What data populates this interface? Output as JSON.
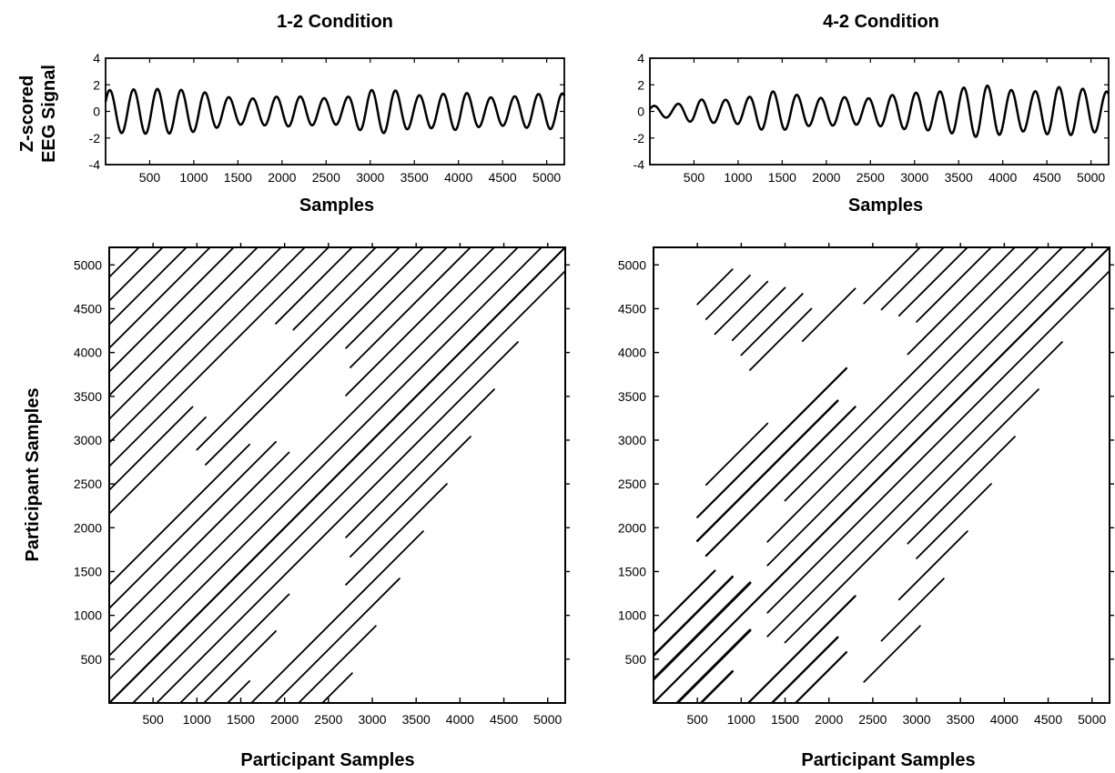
{
  "chart_data": [
    {
      "type": "line",
      "title": "1-2 Condition",
      "xlabel": "Samples",
      "ylabel_lines": [
        "Z-scored",
        "EEG Signal"
      ],
      "xlim": [
        0,
        5200
      ],
      "ylim": [
        -4,
        4
      ],
      "x_ticks": [
        500,
        1000,
        1500,
        2000,
        2500,
        3000,
        3500,
        4000,
        4500,
        5000
      ],
      "y_ticks": [
        -4,
        -2,
        0,
        2,
        4
      ],
      "grid": false,
      "series": [
        {
          "sample_step": 10,
          "cycle_length": 270,
          "cycle_peaks": [
            1.6,
            1.65,
            1.7,
            1.65,
            1.5,
            1.1,
            0.95,
            1.1,
            1.15,
            1.0,
            1.0,
            1.6,
            1.65,
            1.2,
            1.3,
            1.45,
            1.05,
            1.1,
            1.3,
            1.35
          ]
        }
      ]
    },
    {
      "type": "line",
      "title": "4-2 Condition",
      "xlabel": "Samples",
      "xlim": [
        0,
        5200
      ],
      "ylim": [
        -4,
        4
      ],
      "x_ticks": [
        500,
        1000,
        1500,
        2000,
        2500,
        3000,
        3500,
        4000,
        4500,
        5000
      ],
      "y_ticks": [
        -4,
        -2,
        0,
        2,
        4
      ],
      "grid": false,
      "series": [
        {
          "sample_step": 10,
          "cycle_length": 270,
          "cycle_peaks": [
            0.4,
            0.5,
            0.9,
            0.85,
            1.0,
            1.55,
            1.3,
            1.0,
            1.1,
            0.95,
            1.2,
            1.4,
            1.45,
            1.75,
            2.0,
            1.65,
            1.45,
            1.85,
            1.75,
            1.5
          ]
        }
      ]
    },
    {
      "type": "heatmap",
      "subtype": "recurrence-plot",
      "xlabel": "Participant Samples",
      "ylabel": "Participant Samples",
      "xlim": [
        0,
        5200
      ],
      "ylim": [
        0,
        5200
      ],
      "x_ticks": [
        500,
        1000,
        1500,
        2000,
        2500,
        3000,
        3500,
        4000,
        4500,
        5000
      ],
      "y_ticks": [
        500,
        1000,
        1500,
        2000,
        2500,
        3000,
        3500,
        4000,
        4500,
        5000
      ],
      "diagonal_lag_spacing": 270,
      "recurrent_lines": [
        {
          "lag": 0,
          "from": 0,
          "to": 5200,
          "width": 2.2
        },
        {
          "lag": 270,
          "from": 0,
          "to": 5200,
          "width": 1.8
        },
        {
          "lag": -270,
          "from": 0,
          "to": 5200,
          "width": 1.8
        },
        {
          "lag": 540,
          "from": 0,
          "to": 4660,
          "width": 1.8
        },
        {
          "lag": -540,
          "from": 0,
          "to": 4660,
          "width": 1.8
        },
        {
          "lag": 810,
          "from": 0,
          "to": 2050,
          "width": 1.8
        },
        {
          "lag": 810,
          "from": 2700,
          "to": 4390,
          "width": 1.8
        },
        {
          "lag": -810,
          "from": 0,
          "to": 2050,
          "width": 1.8
        },
        {
          "lag": -810,
          "from": 2700,
          "to": 4390,
          "width": 1.8
        },
        {
          "lag": 1080,
          "from": 0,
          "to": 1900,
          "width": 1.8
        },
        {
          "lag": 1080,
          "from": 2750,
          "to": 4120,
          "width": 1.8
        },
        {
          "lag": -1080,
          "from": 0,
          "to": 1900,
          "width": 1.8
        },
        {
          "lag": -1080,
          "from": 2750,
          "to": 4120,
          "width": 1.8
        },
        {
          "lag": 1350,
          "from": 0,
          "to": 1600,
          "width": 1.8
        },
        {
          "lag": 1350,
          "from": 2700,
          "to": 3850,
          "width": 1.8
        },
        {
          "lag": -1350,
          "from": 0,
          "to": 1600,
          "width": 1.8
        },
        {
          "lag": -1350,
          "from": 2700,
          "to": 3850,
          "width": 1.8
        },
        {
          "lag": 1620,
          "from": 1100,
          "to": 3580,
          "width": 1.8
        },
        {
          "lag": -1620,
          "from": 1100,
          "to": 3580,
          "width": 1.8
        },
        {
          "lag": 1890,
          "from": 1000,
          "to": 3310,
          "width": 1.8
        },
        {
          "lag": -1890,
          "from": 1000,
          "to": 3310,
          "width": 1.8
        },
        {
          "lag": 2160,
          "from": 0,
          "to": 1100,
          "width": 1.8
        },
        {
          "lag": 2160,
          "from": 2100,
          "to": 3040,
          "width": 1.8
        },
        {
          "lag": -2160,
          "from": 0,
          "to": 1100,
          "width": 1.8
        },
        {
          "lag": -2160,
          "from": 2100,
          "to": 3040,
          "width": 1.8
        },
        {
          "lag": 2430,
          "from": 0,
          "to": 950,
          "width": 1.8
        },
        {
          "lag": 2430,
          "from": 1900,
          "to": 2770,
          "width": 1.8
        },
        {
          "lag": -2430,
          "from": 0,
          "to": 950,
          "width": 1.8
        },
        {
          "lag": -2430,
          "from": 1900,
          "to": 2770,
          "width": 1.8
        },
        {
          "lag": 2700,
          "from": 0,
          "to": 2500,
          "width": 1.8
        },
        {
          "lag": -2700,
          "from": 0,
          "to": 2500,
          "width": 1.8
        },
        {
          "lag": 2970,
          "from": 0,
          "to": 2230,
          "width": 1.8
        },
        {
          "lag": -2970,
          "from": 0,
          "to": 2230,
          "width": 1.8
        },
        {
          "lag": 3240,
          "from": 0,
          "to": 1960,
          "width": 1.8
        },
        {
          "lag": -3240,
          "from": 0,
          "to": 1960,
          "width": 1.8
        },
        {
          "lag": 3510,
          "from": 0,
          "to": 1690,
          "width": 1.8
        },
        {
          "lag": -3510,
          "from": 0,
          "to": 1690,
          "width": 1.8
        },
        {
          "lag": 3780,
          "from": 0,
          "to": 1420,
          "width": 1.8
        },
        {
          "lag": -3780,
          "from": 0,
          "to": 1420,
          "width": 1.8
        },
        {
          "lag": 4050,
          "from": 0,
          "to": 1150,
          "width": 1.8
        },
        {
          "lag": -4050,
          "from": 0,
          "to": 1150,
          "width": 1.8
        },
        {
          "lag": 4320,
          "from": 0,
          "to": 880,
          "width": 1.8
        },
        {
          "lag": -4320,
          "from": 0,
          "to": 880,
          "width": 1.8
        },
        {
          "lag": 4590,
          "from": 0,
          "to": 610,
          "width": 1.8
        },
        {
          "lag": -4590,
          "from": 0,
          "to": 610,
          "width": 1.8
        },
        {
          "lag": 4860,
          "from": 0,
          "to": 340,
          "width": 1.8
        },
        {
          "lag": -4860,
          "from": 0,
          "to": 340,
          "width": 1.8
        }
      ]
    },
    {
      "type": "heatmap",
      "subtype": "recurrence-plot",
      "xlabel": "Participant Samples",
      "xlim": [
        0,
        5200
      ],
      "ylim": [
        0,
        5200
      ],
      "x_ticks": [
        500,
        1000,
        1500,
        2000,
        2500,
        3000,
        3500,
        4000,
        4500,
        5000
      ],
      "y_ticks": [
        500,
        1000,
        1500,
        2000,
        2500,
        3000,
        3500,
        4000,
        4500,
        5000
      ],
      "diagonal_lag_spacing": 270,
      "recurrent_lines": [
        {
          "lag": 0,
          "from": 0,
          "to": 5200,
          "width": 2.2
        },
        {
          "lag": 270,
          "from": 0,
          "to": 1100,
          "width": 3.0
        },
        {
          "lag": 270,
          "from": 1300,
          "to": 5200,
          "width": 1.8
        },
        {
          "lag": -270,
          "from": 0,
          "to": 1100,
          "width": 3.0
        },
        {
          "lag": -270,
          "from": 1300,
          "to": 5200,
          "width": 1.8
        },
        {
          "lag": 540,
          "from": 0,
          "to": 900,
          "width": 2.6
        },
        {
          "lag": 540,
          "from": 1300,
          "to": 4660,
          "width": 1.8
        },
        {
          "lag": -540,
          "from": 0,
          "to": 900,
          "width": 2.6
        },
        {
          "lag": -540,
          "from": 1300,
          "to": 4660,
          "width": 1.8
        },
        {
          "lag": 810,
          "from": 0,
          "to": 700,
          "width": 2.2
        },
        {
          "lag": 810,
          "from": 1500,
          "to": 4390,
          "width": 1.8
        },
        {
          "lag": -810,
          "from": 0,
          "to": 700,
          "width": 2.2
        },
        {
          "lag": -810,
          "from": 1500,
          "to": 4390,
          "width": 1.8
        },
        {
          "lag": 1080,
          "from": 600,
          "to": 2300,
          "width": 2.2
        },
        {
          "lag": 1080,
          "from": 2900,
          "to": 4120,
          "width": 1.8
        },
        {
          "lag": -1080,
          "from": 600,
          "to": 2300,
          "width": 2.2
        },
        {
          "lag": -1080,
          "from": 2900,
          "to": 4120,
          "width": 1.8
        },
        {
          "lag": 1350,
          "from": 500,
          "to": 2100,
          "width": 2.4
        },
        {
          "lag": 1350,
          "from": 3000,
          "to": 3850,
          "width": 1.8
        },
        {
          "lag": -1350,
          "from": 500,
          "to": 2100,
          "width": 2.4
        },
        {
          "lag": -1350,
          "from": 3000,
          "to": 3850,
          "width": 1.8
        },
        {
          "lag": 1620,
          "from": 500,
          "to": 2200,
          "width": 2.2
        },
        {
          "lag": 1620,
          "from": 2800,
          "to": 3580,
          "width": 1.8
        },
        {
          "lag": -1620,
          "from": 500,
          "to": 2200,
          "width": 2.2
        },
        {
          "lag": -1620,
          "from": 2800,
          "to": 3580,
          "width": 1.8
        },
        {
          "lag": 1890,
          "from": 600,
          "to": 1300,
          "width": 1.8
        },
        {
          "lag": 1890,
          "from": 2600,
          "to": 3310,
          "width": 1.8
        },
        {
          "lag": -1890,
          "from": 600,
          "to": 1300,
          "width": 1.8
        },
        {
          "lag": -1890,
          "from": 2600,
          "to": 3310,
          "width": 1.8
        },
        {
          "lag": 2160,
          "from": 2400,
          "to": 3040,
          "width": 1.8
        },
        {
          "lag": -2160,
          "from": 2400,
          "to": 3040,
          "width": 1.8
        },
        {
          "lag": 2430,
          "from": 1700,
          "to": 2300,
          "width": 1.8
        },
        {
          "lag": -2430,
          "from": 1700,
          "to": 2300,
          "width": 1.8
        },
        {
          "lag": 2700,
          "from": 1100,
          "to": 1800,
          "width": 1.8
        },
        {
          "lag": -2700,
          "from": 1100,
          "to": 1800,
          "width": 1.8
        },
        {
          "lag": 2970,
          "from": 1000,
          "to": 1700,
          "width": 1.8
        },
        {
          "lag": -2970,
          "from": 1000,
          "to": 1700,
          "width": 1.8
        },
        {
          "lag": 3240,
          "from": 900,
          "to": 1500,
          "width": 1.8
        },
        {
          "lag": -3240,
          "from": 900,
          "to": 1500,
          "width": 1.8
        },
        {
          "lag": 3510,
          "from": 700,
          "to": 1300,
          "width": 1.8
        },
        {
          "lag": -3510,
          "from": 700,
          "to": 1300,
          "width": 1.8
        },
        {
          "lag": 3780,
          "from": 600,
          "to": 1100,
          "width": 1.8
        },
        {
          "lag": -3780,
          "from": 600,
          "to": 1100,
          "width": 1.8
        },
        {
          "lag": 4050,
          "from": 500,
          "to": 900,
          "width": 1.8
        },
        {
          "lag": -4050,
          "from": 500,
          "to": 900,
          "width": 1.8
        }
      ]
    }
  ]
}
